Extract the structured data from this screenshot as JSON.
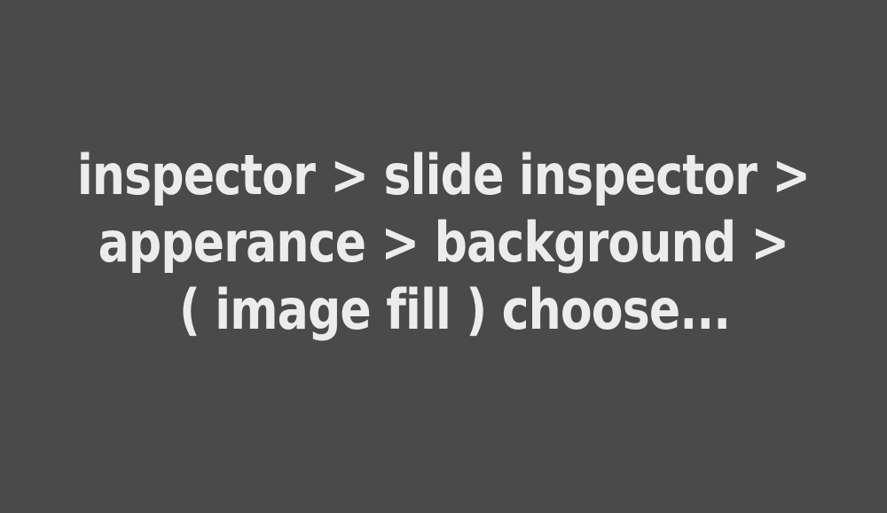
{
  "caption": {
    "lines": [
      "inspector > slide inspector >",
      "apperance > background >",
      "( image fill ) choose..."
    ]
  },
  "colors": {
    "background": "#4a4a4a",
    "text": "#ececec"
  }
}
